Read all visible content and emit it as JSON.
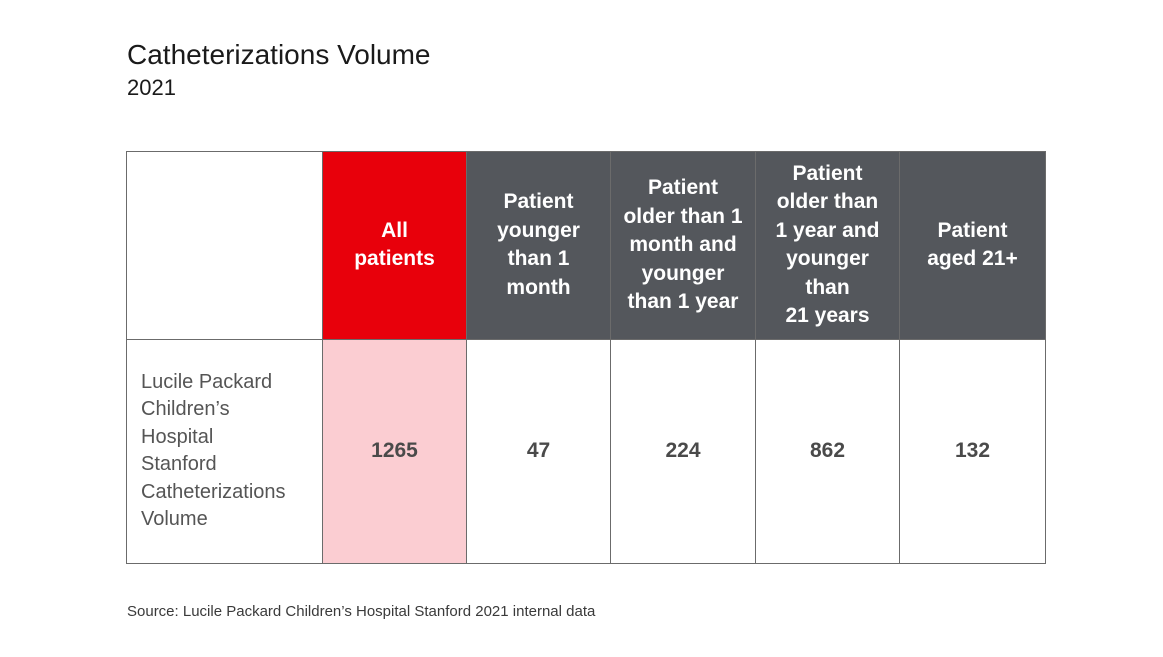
{
  "title": "Catheterizations Volume",
  "subtitle": "2021",
  "source": "Source: Lucile Packard Children’s Hospital Stanford 2021 internal data",
  "colors": {
    "header_dark": "#54575c",
    "highlight_header": "#e8000b",
    "highlight_cell": "#fbcdd2"
  },
  "chart_data": {
    "type": "table",
    "title": "Catheterizations Volume",
    "subtitle": "2021",
    "columns": [
      {
        "label": "All patients",
        "lines": [
          "All",
          "patients"
        ]
      },
      {
        "label": "Patient younger than 1 month",
        "lines": [
          "Patient",
          "younger",
          "than 1",
          "month"
        ]
      },
      {
        "label": "Patient older than 1 month and younger than 1 year",
        "lines": [
          "Patient",
          "older than 1",
          "month and",
          "younger",
          "than 1 year"
        ]
      },
      {
        "label": "Patient older than 1 year and younger than 21 years",
        "lines": [
          "Patient",
          "older than",
          "1 year and",
          "younger",
          "than",
          "21 years"
        ]
      },
      {
        "label": "Patient aged 21+",
        "lines": [
          "Patient",
          "aged 21+"
        ]
      }
    ],
    "rows": [
      {
        "label": "Lucile Packard Children’s Hospital Stanford Catheterizations Volume",
        "label_lines": [
          "Lucile Packard",
          "Children’s",
          "Hospital",
          "Stanford",
          "Catheterizations",
          "Volume"
        ],
        "values": [
          "1265",
          "47",
          "224",
          "862",
          "132"
        ]
      }
    ]
  }
}
